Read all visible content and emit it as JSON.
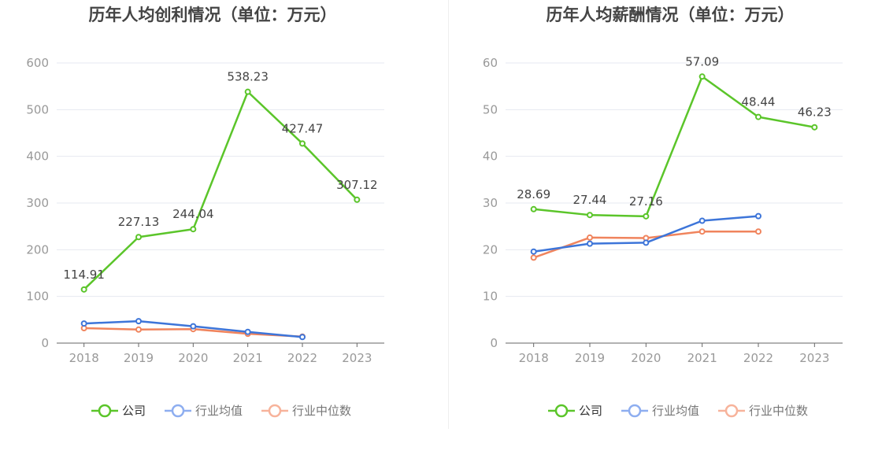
{
  "colors": {
    "company": "#5bc52a",
    "industry_avg": "#3d75d9",
    "industry_median": "#f0845d",
    "legend_avg": "#8eaef0",
    "legend_median": "#f7b39b",
    "grid": "#e6e9f0",
    "axis": "#666666"
  },
  "legend": {
    "company": "公司",
    "industry_avg": "行业均值",
    "industry_median": "行业中位数"
  },
  "chart_data": [
    {
      "type": "line",
      "title": "历年人均创利情况（单位：万元）",
      "categories": [
        "2018",
        "2019",
        "2020",
        "2021",
        "2022",
        "2023"
      ],
      "ylim": [
        0,
        600
      ],
      "yticks": [
        0,
        100,
        200,
        300,
        400,
        500,
        600
      ],
      "grid": true,
      "legend_position": "bottom",
      "series": [
        {
          "name": "公司",
          "values": [
            114.91,
            227.13,
            244.04,
            538.23,
            427.47,
            307.12
          ],
          "labels": [
            "114.91",
            "227.13",
            "244.04",
            "538.23",
            "427.47",
            "307.12"
          ]
        },
        {
          "name": "行业均值",
          "values": [
            42,
            47,
            36,
            24,
            13,
            null
          ]
        },
        {
          "name": "行业中位数",
          "values": [
            32,
            29,
            30,
            20,
            14,
            null
          ]
        }
      ]
    },
    {
      "type": "line",
      "title": "历年人均薪酬情况（单位：万元）",
      "categories": [
        "2018",
        "2019",
        "2020",
        "2021",
        "2022",
        "2023"
      ],
      "ylim": [
        0,
        60
      ],
      "yticks": [
        0,
        10,
        20,
        30,
        40,
        50,
        60
      ],
      "grid": true,
      "legend_position": "bottom",
      "series": [
        {
          "name": "公司",
          "values": [
            28.69,
            27.44,
            27.16,
            57.09,
            48.44,
            46.23
          ],
          "labels": [
            "28.69",
            "27.44",
            "27.16",
            "57.09",
            "48.44",
            "46.23"
          ]
        },
        {
          "name": "行业均值",
          "values": [
            19.6,
            21.3,
            21.5,
            26.2,
            27.2,
            null
          ]
        },
        {
          "name": "行业中位数",
          "values": [
            18.3,
            22.6,
            22.5,
            23.9,
            23.9,
            null
          ]
        }
      ]
    }
  ]
}
